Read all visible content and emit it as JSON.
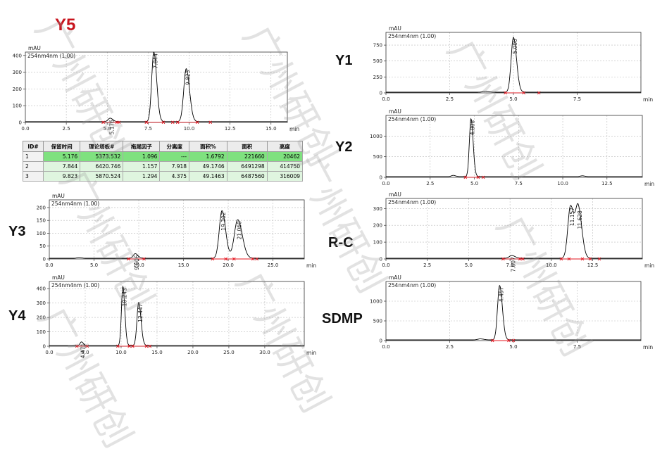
{
  "labels": {
    "y5": "Y5",
    "y1": "Y1",
    "y2": "Y2",
    "y3": "Y3",
    "y4": "Y4",
    "rc": "R-C",
    "sdmp": "SDMP"
  },
  "watermark": "广州研创",
  "colors": {
    "trace": "#000000",
    "title_red": "#c8141e",
    "marker": "#e4141e",
    "baseline": "#e4141e",
    "table_highlight": "#7fe17f",
    "table_light": "#dff5df"
  },
  "table": {
    "headers": [
      "ID#",
      "保留时间",
      "理论塔板#",
      "拖尾因子",
      "分离度",
      "面积%",
      "面积",
      "高度"
    ],
    "rows": [
      [
        "1",
        "5.176",
        "5373.532",
        "1.096",
        "---",
        "1.6792",
        "221660",
        "20462"
      ],
      [
        "2",
        "7.844",
        "6420.746",
        "1.157",
        "7.918",
        "49.1746",
        "6491298",
        "414750"
      ],
      [
        "3",
        "9.823",
        "5870.524",
        "1.294",
        "4.375",
        "49.1463",
        "6487560",
        "316009"
      ]
    ]
  },
  "chart_data": [
    {
      "id": "y5",
      "type": "line",
      "ylabel": "mAU",
      "trace_label": "254nm4nm (1.00)",
      "xunit": "min",
      "xlim": [
        0,
        16
      ],
      "ylim": [
        0,
        420
      ],
      "xticks": [
        0,
        2.5,
        5,
        7.5,
        10,
        12.5,
        15
      ],
      "yticks": [
        0,
        100,
        200,
        300,
        400
      ],
      "peaks": [
        {
          "rt": 5.176,
          "height": 20.5,
          "width": 0.12,
          "label": "5.176"
        },
        {
          "rt": 7.844,
          "height": 414.75,
          "width": 0.13,
          "label": "7.844"
        },
        {
          "rt": 9.823,
          "height": 316.0,
          "width": 0.15,
          "label": "9.823"
        }
      ],
      "markers": [
        5.6,
        9.0,
        11.3
      ]
    },
    {
      "id": "y1",
      "type": "line",
      "ylabel": "mAU",
      "trace_label": "254nm4nm (1.00)",
      "xunit": "min",
      "xlim": [
        0,
        10
      ],
      "ylim": [
        0,
        950
      ],
      "xticks": [
        0,
        2.5,
        5,
        7.5
      ],
      "yticks": [
        0,
        250,
        500,
        750
      ],
      "peaks": [
        {
          "rt": 5.0,
          "height": 860,
          "width": 0.09,
          "label": "5.000"
        },
        {
          "rt": 3.9,
          "height": 12,
          "width": 0.1,
          "label": ""
        }
      ],
      "markers": [
        6.0
      ]
    },
    {
      "id": "y2",
      "type": "line",
      "ylabel": "mAU",
      "trace_label": "254nm4nm (1.00)",
      "xunit": "min",
      "xlim": [
        0,
        14.5
      ],
      "ylim": [
        0,
        1500
      ],
      "xticks": [
        0,
        2.5,
        5,
        7.5,
        10,
        12.5
      ],
      "yticks": [
        0,
        500,
        1000
      ],
      "peaks": [
        {
          "rt": 4.808,
          "height": 1400,
          "width": 0.09,
          "label": "4.808"
        },
        {
          "rt": 3.8,
          "height": 30,
          "width": 0.1,
          "label": ""
        },
        {
          "rt": 11.1,
          "height": 20,
          "width": 0.1,
          "label": ""
        }
      ],
      "markers": [
        5.5
      ]
    },
    {
      "id": "y3",
      "type": "line",
      "ylabel": "mAU",
      "trace_label": "254nm4nm (1.00)",
      "xunit": "min",
      "xlim": [
        0,
        28.5
      ],
      "ylim": [
        0,
        230
      ],
      "xticks": [
        0,
        5,
        10,
        15,
        20,
        25
      ],
      "yticks": [
        0,
        50,
        100,
        150,
        200
      ],
      "peaks": [
        {
          "rt": 9.606,
          "height": 18,
          "width": 0.22,
          "label": "9.606"
        },
        {
          "rt": 19.302,
          "height": 185,
          "width": 0.3,
          "label": "19.302"
        },
        {
          "rt": 21.06,
          "height": 150,
          "width": 0.38,
          "label": "21.060"
        },
        {
          "rt": 3.3,
          "height": 3,
          "width": 0.2,
          "label": ""
        }
      ],
      "markers": [
        23.2
      ]
    },
    {
      "id": "rc",
      "type": "line",
      "ylabel": "mAU",
      "trace_label": "254nm4nm (1.00)",
      "xunit": "min",
      "xlim": [
        0,
        15.5
      ],
      "ylim": [
        0,
        360
      ],
      "xticks": [
        0,
        2.5,
        5,
        7.5,
        10,
        12.5
      ],
      "yticks": [
        0,
        100,
        200,
        300
      ],
      "peaks": [
        {
          "rt": 7.607,
          "height": 16,
          "width": 0.15,
          "label": "7.607"
        },
        {
          "rt": 11.157,
          "height": 310,
          "width": 0.16,
          "label": "11.157"
        },
        {
          "rt": 11.628,
          "height": 292,
          "width": 0.16,
          "label": "11.628"
        }
      ],
      "markers": [
        8.1,
        12.9
      ]
    },
    {
      "id": "y4",
      "type": "line",
      "ylabel": "mAU",
      "trace_label": "254nm4nm (1.00)",
      "xunit": "min",
      "xlim": [
        0,
        35.5
      ],
      "ylim": [
        0,
        450
      ],
      "xticks": [
        0,
        5,
        10,
        15,
        20,
        25,
        30
      ],
      "yticks": [
        0,
        100,
        200,
        300,
        400
      ],
      "peaks": [
        {
          "rt": 4.471,
          "height": 25,
          "width": 0.18,
          "label": "4.471"
        },
        {
          "rt": 10.243,
          "height": 410,
          "width": 0.2,
          "label": "10.243"
        },
        {
          "rt": 12.447,
          "height": 300,
          "width": 0.24,
          "label": "12.447"
        }
      ],
      "markers": [
        14.0
      ]
    },
    {
      "id": "sdmp",
      "type": "line",
      "ylabel": "mAU",
      "trace_label": "254nm4nm (1.00)",
      "xunit": "min",
      "xlim": [
        0,
        10
      ],
      "ylim": [
        0,
        1500
      ],
      "xticks": [
        0,
        2.5,
        5,
        7.5
      ],
      "yticks": [
        0,
        500,
        1000
      ],
      "peaks": [
        {
          "rt": 4.457,
          "height": 1380,
          "width": 0.08,
          "label": "4.457"
        },
        {
          "rt": 3.7,
          "height": 25,
          "width": 0.1,
          "label": ""
        }
      ],
      "markers": [
        5.0
      ]
    }
  ]
}
